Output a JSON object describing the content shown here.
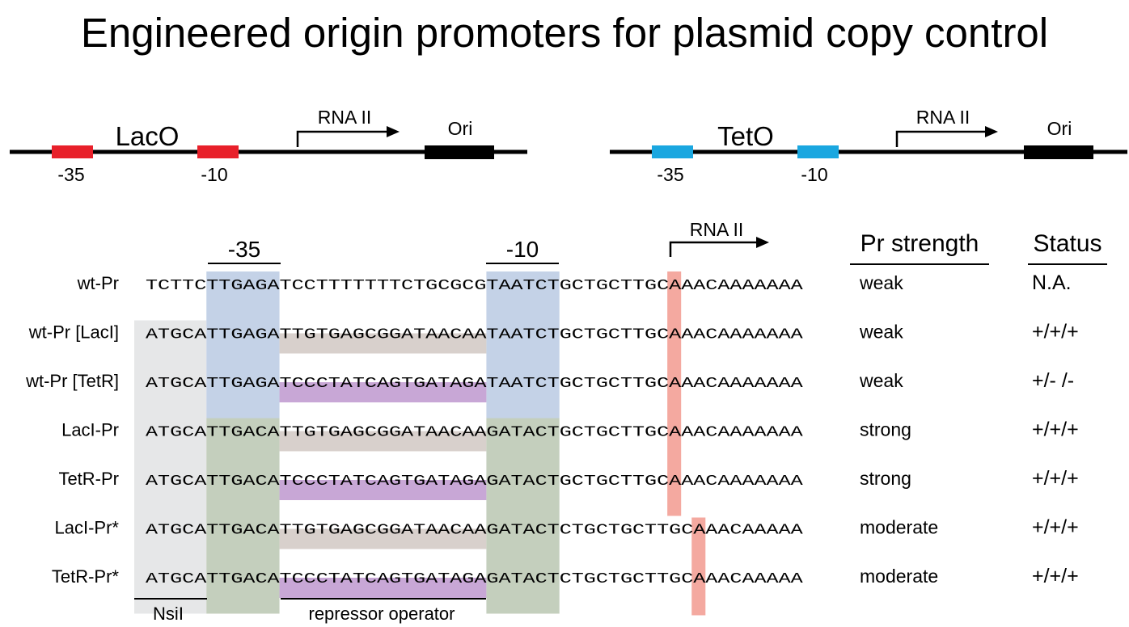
{
  "title": "Engineered origin promoters for plasmid copy control",
  "colors": {
    "lac_box": "#e8202a",
    "tet_box": "#1aa7e0",
    "ori_box": "#000000",
    "nsil_shade": "#e6e7e8",
    "box35_wt": "#c4d2e7",
    "box35_eng": "#c4cfbd",
    "lac_operator": "#d8d0cc",
    "tet_operator": "#c8a7d6",
    "tss_mark": "#f4a9a0"
  },
  "maps": [
    {
      "name": "LacO",
      "minus35": "-35",
      "minus10": "-10",
      "rna": "RNA II",
      "ori": "Ori"
    },
    {
      "name": "TetO",
      "minus35": "-35",
      "minus10": "-10",
      "rna": "RNA II",
      "ori": "Ori"
    }
  ],
  "alignment": {
    "label_minus35": "-35",
    "label_minus10": "-10",
    "label_rna": "RNA II",
    "col_strength": "Pr strength",
    "col_status": "Status",
    "bottom_nsil": "NsiI",
    "bottom_operator": "repressor operator",
    "rows": [
      {
        "name": "wt-Pr",
        "seq": "TCTTCTTGAGATCCTTTTTTTCTGCGCGTAATCTGCTGCTTGCAAACAAAAAAA",
        "strength": "weak",
        "status": "N.A.",
        "nsil": false,
        "box35": "wt",
        "box10": "wt",
        "op": "none",
        "tss": 0
      },
      {
        "name": "wt-Pr [LacI]",
        "seq": "ATGCATTGAGATTGTGAGCGGATAACAATAATCTGCTGCTTGCAAACAAAAAAA",
        "strength": "weak",
        "status": "+/+/+",
        "nsil": true,
        "box35": "wt",
        "box10": "wt",
        "op": "lac",
        "tss": 0
      },
      {
        "name": "wt-Pr [TetR]",
        "seq": "ATGCATTGAGATCCCTATCAGTGATAGATAATCTGCTGCTTGCAAACAAAAAAA",
        "strength": "weak",
        "status": "+/- /-",
        "nsil": true,
        "box35": "wt",
        "box10": "wt",
        "op": "tet",
        "tss": 0
      },
      {
        "name": "LacI-Pr",
        "seq": "ATGCATTGACATTGTGAGCGGATAACAAGATACTGCTGCTTGCAAACAAAAAAA",
        "strength": "strong",
        "status": "+/+/+",
        "nsil": true,
        "box35": "eng",
        "box10": "eng",
        "op": "lac",
        "tss": 0
      },
      {
        "name": "TetR-Pr",
        "seq": "ATGCATTGACATCCCTATCAGTGATAGAGATACTGCTGCTTGCAAACAAAAAAA",
        "strength": "strong",
        "status": "+/+/+",
        "nsil": true,
        "box35": "eng",
        "box10": "eng",
        "op": "tet",
        "tss": 0
      },
      {
        "name": "LacI-Pr*",
        "seq": "ATGCATTGACATTGTGAGCGGATAACAAGATACTCTGCTGCTTGCAAACAAAAA",
        "strength": "moderate",
        "status": "+/+/+",
        "nsil": true,
        "box35": "eng",
        "box10": "eng",
        "op": "lac",
        "tss": 1
      },
      {
        "name": "TetR-Pr*",
        "seq": "ATGCATTGACATCCCTATCAGTGATAGAGATACTCTGCTGCTTGCAAACAAAAA",
        "strength": "moderate",
        "status": "+/+/+",
        "nsil": true,
        "box35": "eng",
        "box10": "eng",
        "op": "tet",
        "tss": 1
      }
    ]
  }
}
